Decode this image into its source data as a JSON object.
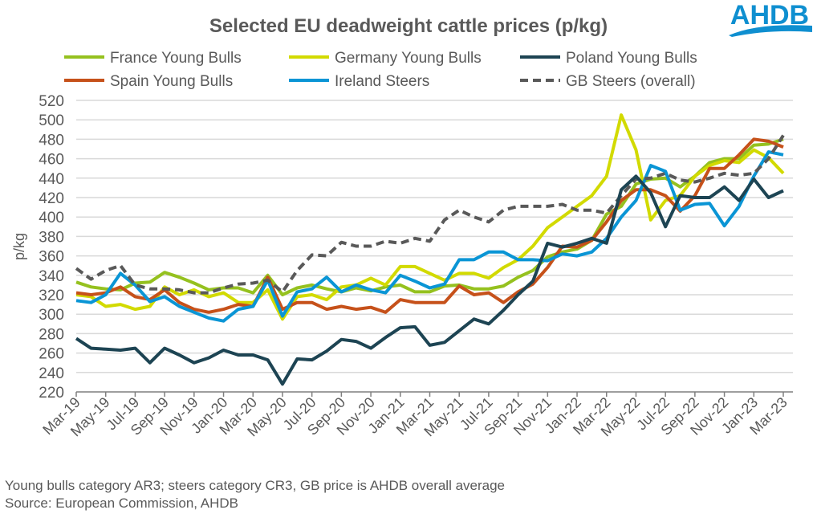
{
  "logo": {
    "text": "AHDB",
    "color": "#0f8fd0"
  },
  "footer": {
    "note": "Young bulls category AR3; steers category CR3, GB price is AHDB overall average",
    "source": "Source: European Commission, AHDB"
  },
  "chart_data": {
    "type": "line",
    "title": "Selected EU deadweight cattle prices (p/kg)",
    "ylabel": "p/kg",
    "xlabel": "",
    "ylim": [
      220,
      520
    ],
    "yticks": [
      220,
      240,
      260,
      280,
      300,
      320,
      340,
      360,
      380,
      400,
      420,
      440,
      460,
      480,
      500,
      520
    ],
    "grid": true,
    "legend_position": "top",
    "x": [
      "Mar-19",
      "Apr-19",
      "May-19",
      "Jun-19",
      "Jul-19",
      "Aug-19",
      "Sep-19",
      "Oct-19",
      "Nov-19",
      "Dec-19",
      "Jan-20",
      "Feb-20",
      "Mar-20",
      "Apr-20",
      "May-20",
      "Jun-20",
      "Jul-20",
      "Aug-20",
      "Sep-20",
      "Oct-20",
      "Nov-20",
      "Dec-20",
      "Jan-21",
      "Feb-21",
      "Mar-21",
      "Apr-21",
      "May-21",
      "Jun-21",
      "Jul-21",
      "Aug-21",
      "Sep-21",
      "Oct-21",
      "Nov-21",
      "Dec-21",
      "Jan-22",
      "Feb-22",
      "Mar-22",
      "Apr-22",
      "May-22",
      "Jun-22",
      "Jul-22",
      "Aug-22",
      "Sep-22",
      "Oct-22",
      "Nov-22",
      "Dec-22",
      "Jan-23",
      "Feb-23",
      "Mar-23"
    ],
    "xtick_labels": [
      "Mar-19",
      "May-19",
      "Jul-19",
      "Sep-19",
      "Nov-19",
      "Jan-20",
      "Mar-20",
      "May-20",
      "Jul-20",
      "Sep-20",
      "Nov-20",
      "Jan-21",
      "Mar-21",
      "May-21",
      "Jul-21",
      "Sep-21",
      "Nov-21",
      "Jan-22",
      "Mar-22",
      "May-22",
      "Jul-22",
      "Sep-22",
      "Nov-22",
      "Jan-23",
      "Mar-23"
    ],
    "series": [
      {
        "name": "France Young Bulls",
        "color": "#95c11f",
        "dashed": false,
        "values": [
          333,
          328,
          326,
          325,
          332,
          333,
          343,
          338,
          332,
          325,
          327,
          327,
          322,
          340,
          320,
          327,
          330,
          326,
          323,
          327,
          324,
          328,
          330,
          323,
          323,
          329,
          330,
          326,
          326,
          329,
          338,
          345,
          359,
          364,
          367,
          376,
          403,
          411,
          434,
          439,
          440,
          431,
          442,
          456,
          460,
          460,
          474,
          475,
          480
        ]
      },
      {
        "name": "Germany Young Bulls",
        "color": "#d2da00",
        "dashed": false,
        "values": [
          320,
          318,
          308,
          310,
          305,
          308,
          328,
          320,
          325,
          318,
          322,
          312,
          312,
          325,
          295,
          318,
          320,
          315,
          328,
          330,
          337,
          330,
          349,
          349,
          342,
          335,
          342,
          342,
          337,
          348,
          356,
          370,
          389,
          400,
          411,
          422,
          442,
          505,
          469,
          397,
          417,
          422,
          442,
          453,
          458,
          456,
          469,
          461,
          445
        ]
      },
      {
        "name": "Poland Young Bulls",
        "color": "#1d4453",
        "dashed": false,
        "values": [
          275,
          265,
          264,
          263,
          265,
          250,
          265,
          258,
          250,
          255,
          263,
          258,
          258,
          253,
          228,
          254,
          253,
          262,
          274,
          272,
          265,
          276,
          286,
          287,
          268,
          271,
          283,
          295,
          290,
          304,
          320,
          334,
          373,
          369,
          373,
          378,
          373,
          428,
          442,
          425,
          390,
          422,
          420,
          420,
          431,
          417,
          439,
          420,
          427
        ]
      },
      {
        "name": "Spain Young Bulls",
        "color": "#c6511a",
        "dashed": false,
        "values": [
          322,
          320,
          322,
          328,
          318,
          315,
          325,
          312,
          305,
          302,
          305,
          310,
          308,
          338,
          305,
          312,
          312,
          305,
          308,
          305,
          307,
          302,
          315,
          312,
          312,
          312,
          329,
          320,
          322,
          312,
          323,
          331,
          348,
          370,
          369,
          376,
          395,
          417,
          428,
          428,
          422,
          406,
          422,
          450,
          450,
          464,
          480,
          478,
          472
        ]
      },
      {
        "name": "Ireland Steers",
        "color": "#0a95d5",
        "dashed": false,
        "values": [
          314,
          312,
          320,
          342,
          330,
          313,
          318,
          308,
          302,
          296,
          293,
          305,
          308,
          335,
          298,
          323,
          326,
          338,
          323,
          330,
          325,
          322,
          340,
          334,
          327,
          331,
          356,
          356,
          364,
          364,
          356,
          356,
          355,
          362,
          360,
          364,
          378,
          400,
          417,
          453,
          447,
          407,
          413,
          414,
          391,
          411,
          442,
          467,
          464
        ]
      },
      {
        "name": "GB Steers (overall)",
        "color": "#595959",
        "dashed": true,
        "values": [
          347,
          336,
          345,
          350,
          330,
          326,
          326,
          325,
          322,
          322,
          327,
          331,
          332,
          335,
          323,
          345,
          361,
          360,
          374,
          370,
          370,
          375,
          373,
          378,
          375,
          397,
          407,
          400,
          395,
          407,
          411,
          411,
          411,
          413,
          407,
          407,
          404,
          422,
          439,
          440,
          445,
          438,
          436,
          440,
          445,
          443,
          445,
          460,
          484
        ]
      }
    ]
  }
}
